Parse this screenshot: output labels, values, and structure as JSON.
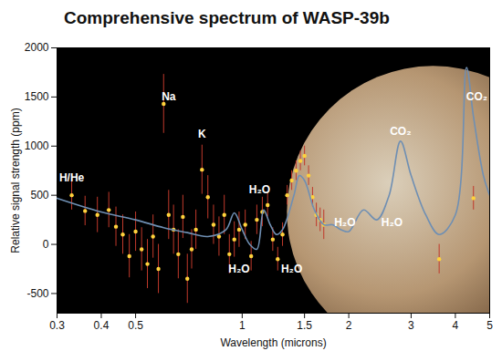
{
  "chart_data": {
    "type": "scatter",
    "title": "Comprehensive spectrum of WASP-39b",
    "x_label": "Wavelength (microns)",
    "y_label": "Relative signal strength (ppm)",
    "log": "x",
    "xlim": [
      0.3,
      5
    ],
    "xticks": [
      0.3,
      0.4,
      0.5,
      1,
      1.5,
      2,
      3,
      4,
      5
    ],
    "ylim": [
      -700,
      2000
    ],
    "yticks": [
      -500,
      0,
      500,
      1000,
      1500,
      2000
    ],
    "grid": false,
    "series": [
      {
        "type": "scatter",
        "color": "#ffd23c",
        "marker": "circle",
        "x": [
          0.33,
          0.36,
          0.39,
          0.42,
          0.44,
          0.46,
          0.48,
          0.5,
          0.52,
          0.54,
          0.56,
          0.58,
          0.6,
          0.62,
          0.64,
          0.66,
          0.68,
          0.7,
          0.72,
          0.74,
          0.77,
          0.8,
          0.83,
          0.86,
          0.89,
          0.92,
          0.95,
          0.98,
          1.02,
          1.06,
          1.1,
          1.14,
          1.18,
          1.22,
          1.26,
          1.3,
          1.34,
          1.38,
          1.42,
          1.46,
          1.5,
          1.54,
          1.58,
          1.62,
          1.66,
          1.7,
          3.6,
          4.5
        ],
        "values": [
          500,
          340,
          300,
          350,
          180,
          100,
          -120,
          130,
          -50,
          -200,
          80,
          -250,
          1430,
          300,
          150,
          -100,
          280,
          -350,
          -50,
          150,
          760,
          480,
          200,
          80,
          300,
          -100,
          50,
          150,
          200,
          -120,
          250,
          330,
          400,
          50,
          -150,
          100,
          500,
          650,
          750,
          850,
          900,
          700,
          480,
          300,
          250,
          200,
          -150,
          470
        ],
        "errors": [
          150,
          150,
          180,
          180,
          200,
          200,
          220,
          200,
          220,
          250,
          220,
          250,
          300,
          250,
          250,
          250,
          220,
          250,
          200,
          200,
          250,
          220,
          200,
          200,
          200,
          200,
          180,
          180,
          150,
          150,
          150,
          150,
          120,
          120,
          120,
          120,
          100,
          100,
          100,
          100,
          100,
          100,
          100,
          120,
          120,
          150,
          150,
          120
        ],
        "error_color": "#c0392b"
      },
      {
        "type": "line",
        "color": "#6f8fb3",
        "line_style": "solid",
        "x": [
          0.3,
          0.4,
          0.5,
          0.6,
          0.7,
          0.8,
          0.9,
          0.95,
          1.0,
          1.05,
          1.1,
          1.15,
          1.2,
          1.25,
          1.3,
          1.4,
          1.45,
          1.5,
          1.6,
          1.7,
          1.8,
          1.9,
          2.0,
          2.2,
          2.4,
          2.6,
          2.8,
          3.0,
          3.3,
          3.6,
          4.0,
          4.3,
          4.5,
          4.8,
          5
        ],
        "values": [
          470,
          330,
          250,
          170,
          120,
          80,
          150,
          320,
          150,
          0,
          -50,
          350,
          200,
          100,
          150,
          500,
          700,
          650,
          350,
          200,
          200,
          150,
          130,
          350,
          250,
          500,
          1050,
          700,
          300,
          100,
          300,
          1800,
          1300,
          700,
          500
        ]
      }
    ],
    "annotations": [
      {
        "text": "H/He",
        "x": 0.33,
        "y": 680
      },
      {
        "text": "Na",
        "x": 0.62,
        "y": 1500
      },
      {
        "text": "K",
        "x": 0.77,
        "y": 1120
      },
      {
        "text": "H₂O",
        "x": 1.12,
        "y": 560
      },
      {
        "text": "H₂O",
        "x": 0.98,
        "y": -250
      },
      {
        "text": "H₂O",
        "x": 1.38,
        "y": -250
      },
      {
        "text": "H₂O",
        "x": 1.95,
        "y": 220
      },
      {
        "text": "H₂O",
        "x": 2.65,
        "y": 220
      },
      {
        "text": "CO₂",
        "x": 2.8,
        "y": 1150
      },
      {
        "text": "CO₂",
        "x": 4.6,
        "y": 1500
      }
    ]
  }
}
